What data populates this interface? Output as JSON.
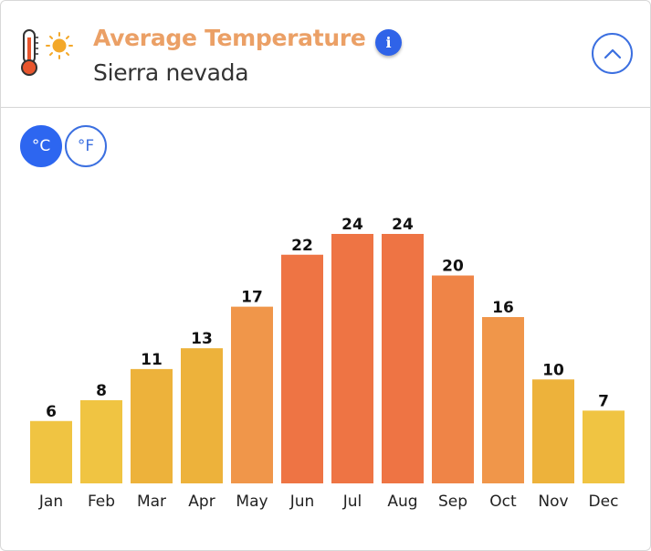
{
  "header": {
    "title": "Average Temperature",
    "subtitle": "Sierra nevada",
    "info_label": "i"
  },
  "icons": {
    "header": "thermometer-sun-icon",
    "info": "info-icon",
    "collapse": "chevron-up-icon"
  },
  "units": {
    "celsius": "°C",
    "fahrenheit": "°F",
    "selected": "celsius"
  },
  "colors": {
    "title": "#eba066",
    "accent": "#2d66f0",
    "bar_cool": "#f0c442",
    "bar_mild": "#edb23b",
    "bar_warm": "#f0964a",
    "bar_hot": "#ee7444",
    "bar_mid_hot": "#ef8447"
  },
  "chart_data": {
    "type": "bar",
    "title": "Average Temperature",
    "unit": "°C",
    "categories": [
      "Jan",
      "Feb",
      "Mar",
      "Apr",
      "May",
      "Jun",
      "Jul",
      "Aug",
      "Sep",
      "Oct",
      "Nov",
      "Dec"
    ],
    "values": [
      6,
      8,
      11,
      13,
      17,
      22,
      24,
      24,
      20,
      16,
      10,
      7
    ],
    "ylim": [
      0,
      24
    ],
    "grid": false,
    "legend": "none"
  }
}
